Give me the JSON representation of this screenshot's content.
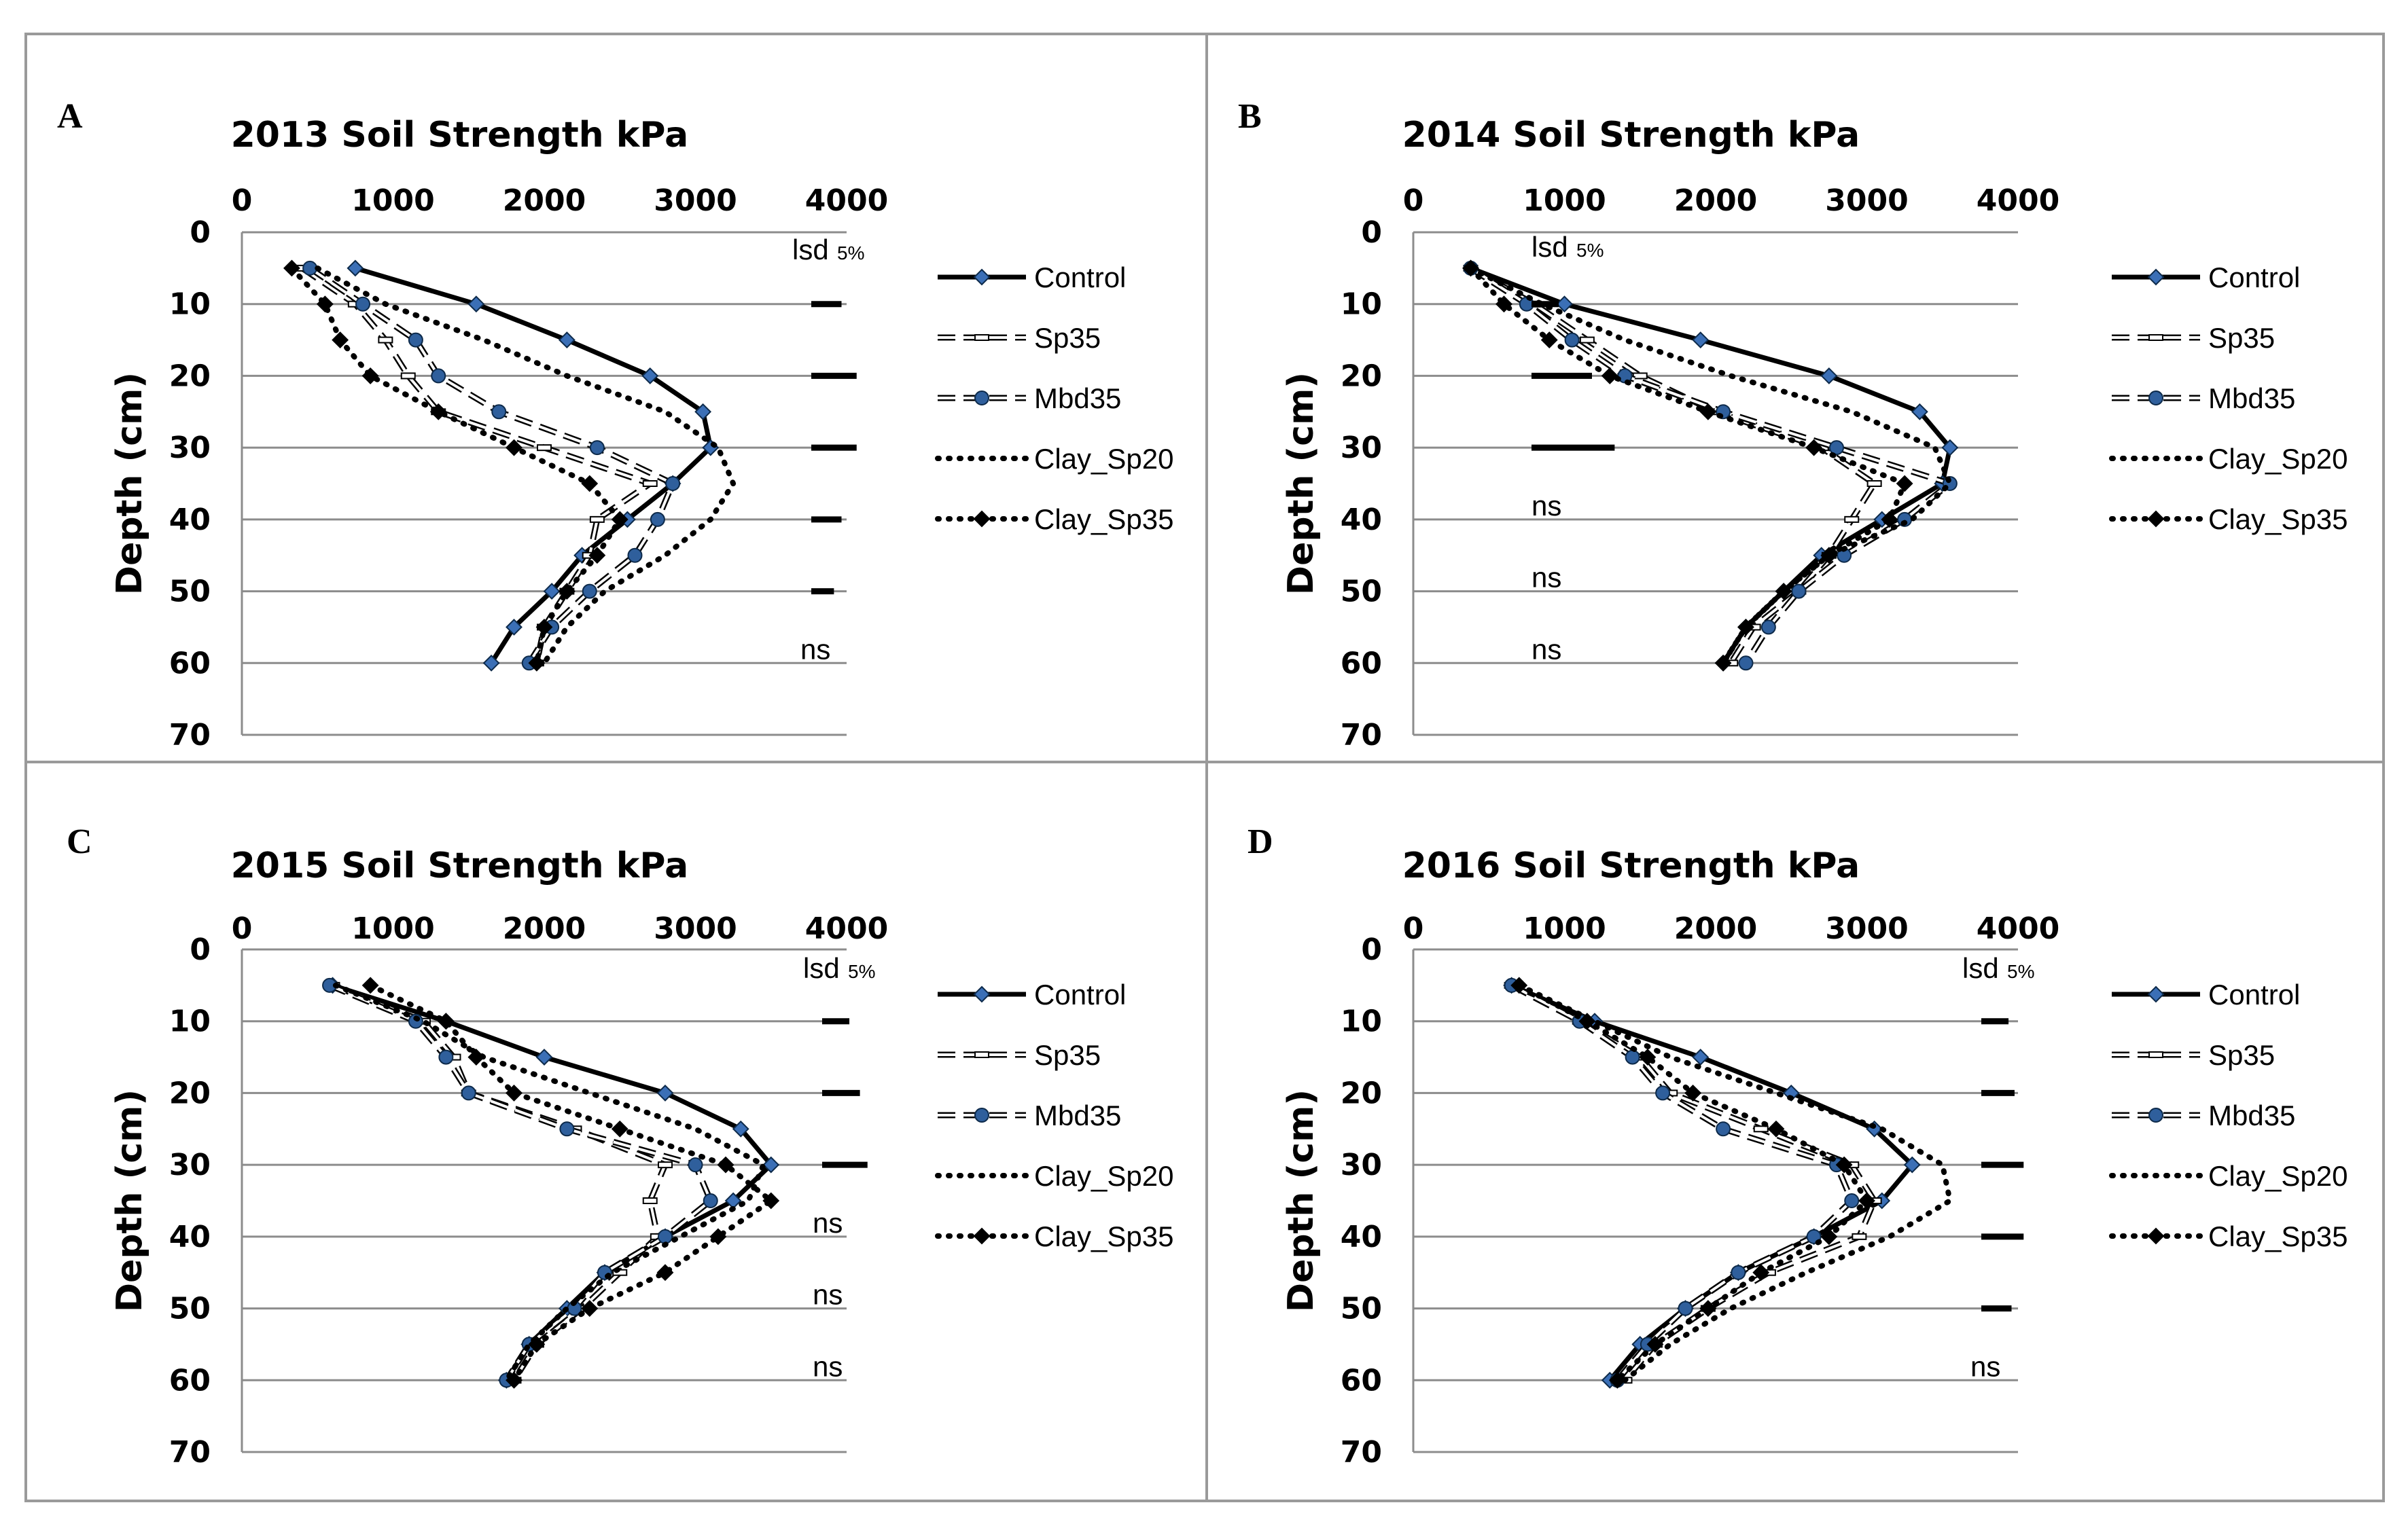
{
  "figure": {
    "legend_labels": [
      "Control",
      "Sp35",
      "Mbd35",
      "Clay_Sp20",
      "Clay_Sp35"
    ],
    "lsd_label": "lsd",
    "lsd_sub": "5%",
    "ns_label": "ns"
  },
  "chart_data": [
    {
      "id": "A",
      "type": "line",
      "panel_label": "A",
      "title": "2013 Soil Strength kPa",
      "xlabel": "",
      "ylabel": "Depth (cm)",
      "xlim": [
        0,
        4000
      ],
      "ylim": [
        0,
        70
      ],
      "x_ticks": [
        0,
        1000,
        2000,
        3000,
        4000
      ],
      "y_ticks": [
        0,
        10,
        20,
        30,
        40,
        50,
        60,
        70
      ],
      "depths": [
        5,
        10,
        15,
        20,
        25,
        30,
        35,
        40,
        45,
        50,
        55,
        60
      ],
      "series": [
        {
          "name": "Control",
          "values": [
            750,
            1550,
            2150,
            2700,
            3050,
            3100,
            2850,
            2550,
            2250,
            2050,
            1800,
            1650
          ]
        },
        {
          "name": "Sp35",
          "values": [
            400,
            750,
            950,
            1100,
            1300,
            2000,
            2700,
            2350,
            2300,
            2150,
            2000,
            1950
          ]
        },
        {
          "name": "Mbd35",
          "values": [
            450,
            800,
            1150,
            1300,
            1700,
            2350,
            2850,
            2750,
            2600,
            2300,
            2050,
            1900
          ]
        },
        {
          "name": "Clay_Sp20",
          "values": [
            500,
            950,
            1600,
            2150,
            2800,
            3150,
            3250,
            3100,
            2800,
            2400,
            2150,
            2000
          ]
        },
        {
          "name": "Clay_Sp35",
          "values": [
            330,
            550,
            650,
            850,
            1300,
            1800,
            2300,
            2500,
            2350,
            2150,
            2000,
            1950
          ]
        }
      ],
      "lsd_marks": [
        {
          "depth": 10,
          "value": 200
        },
        {
          "depth": 20,
          "value": 300
        },
        {
          "depth": 30,
          "value": 300
        },
        {
          "depth": 40,
          "value": 200
        },
        {
          "depth": 50,
          "value": 150
        }
      ],
      "ns_depths": [
        60
      ]
    },
    {
      "id": "B",
      "type": "line",
      "panel_label": "B",
      "title": "2014 Soil Strength kPa",
      "xlabel": "",
      "ylabel": "Depth (cm)",
      "xlim": [
        0,
        4000
      ],
      "ylim": [
        0,
        70
      ],
      "x_ticks": [
        0,
        1000,
        2000,
        3000,
        4000
      ],
      "y_ticks": [
        0,
        10,
        20,
        30,
        40,
        50,
        60,
        70
      ],
      "depths": [
        5,
        10,
        15,
        20,
        25,
        30,
        35,
        40,
        45,
        50,
        55,
        60
      ],
      "series": [
        {
          "name": "Control",
          "values": [
            380,
            1000,
            1900,
            2750,
            3350,
            3550,
            3500,
            3100,
            2700,
            2450,
            2200,
            2050
          ]
        },
        {
          "name": "Sp35",
          "values": [
            380,
            800,
            1150,
            1500,
            2000,
            2700,
            3050,
            2900,
            2750,
            2550,
            2250,
            2100
          ]
        },
        {
          "name": "Mbd35",
          "values": [
            380,
            750,
            1050,
            1400,
            2050,
            2800,
            3550,
            3250,
            2850,
            2550,
            2350,
            2200
          ]
        },
        {
          "name": "Clay_Sp20",
          "values": [
            380,
            850,
            1400,
            2100,
            2900,
            3450,
            3550,
            3300,
            2750,
            2450,
            2200,
            2050
          ]
        },
        {
          "name": "Clay_Sp35",
          "values": [
            380,
            600,
            900,
            1300,
            1950,
            2650,
            3250,
            3150,
            2750,
            2450,
            2200,
            2050
          ]
        }
      ],
      "lsd_marks": [
        {
          "depth": 10,
          "value": 180
        },
        {
          "depth": 20,
          "value": 400
        },
        {
          "depth": 30,
          "value": 550
        }
      ],
      "ns_depths": [
        40,
        50,
        60
      ]
    },
    {
      "id": "C",
      "type": "line",
      "panel_label": "C",
      "title": "2015 Soil Strength kPa",
      "xlabel": "",
      "ylabel": "Depth (cm)",
      "xlim": [
        0,
        4000
      ],
      "ylim": [
        0,
        70
      ],
      "x_ticks": [
        0,
        1000,
        2000,
        3000,
        4000
      ],
      "y_ticks": [
        0,
        10,
        20,
        30,
        40,
        50,
        60,
        70
      ],
      "depths": [
        5,
        10,
        15,
        20,
        25,
        30,
        35,
        40,
        45,
        50,
        55,
        60
      ],
      "series": [
        {
          "name": "Control",
          "values": [
            600,
            1350,
            2000,
            2800,
            3300,
            3500,
            3250,
            2800,
            2400,
            2150,
            1900,
            1750
          ]
        },
        {
          "name": "Sp35",
          "values": [
            600,
            1200,
            1400,
            1500,
            2200,
            2800,
            2700,
            2750,
            2500,
            2250,
            1950,
            1800
          ]
        },
        {
          "name": "Mbd35",
          "values": [
            580,
            1150,
            1350,
            1500,
            2150,
            3000,
            3100,
            2800,
            2400,
            2200,
            1900,
            1750
          ]
        },
        {
          "name": "Clay_Sp20",
          "values": [
            620,
            1200,
            1600,
            2300,
            3000,
            3450,
            3350,
            2900,
            2450,
            2150,
            1900,
            1750
          ]
        },
        {
          "name": "Clay_Sp35",
          "values": [
            850,
            1350,
            1550,
            1800,
            2500,
            3200,
            3500,
            3150,
            2800,
            2300,
            1950,
            1800
          ]
        }
      ],
      "lsd_marks": [
        {
          "depth": 10,
          "value": 180
        },
        {
          "depth": 20,
          "value": 250
        },
        {
          "depth": 30,
          "value": 300
        }
      ],
      "ns_depths": [
        40,
        50,
        60
      ]
    },
    {
      "id": "D",
      "type": "line",
      "panel_label": "D",
      "title": "2016 Soil Strength kPa",
      "xlabel": "",
      "ylabel": "Depth (cm)",
      "xlim": [
        0,
        4000
      ],
      "ylim": [
        0,
        70
      ],
      "x_ticks": [
        0,
        1000,
        2000,
        3000,
        4000
      ],
      "y_ticks": [
        0,
        10,
        20,
        30,
        40,
        50,
        60,
        70
      ],
      "depths": [
        5,
        10,
        15,
        20,
        25,
        30,
        35,
        40,
        45,
        50,
        55,
        60
      ],
      "series": [
        {
          "name": "Control",
          "values": [
            650,
            1200,
            1900,
            2500,
            3050,
            3300,
            3100,
            2650,
            2150,
            1800,
            1500,
            1300
          ]
        },
        {
          "name": "Sp35",
          "values": [
            650,
            1100,
            1500,
            1700,
            2300,
            2900,
            3050,
            2950,
            2350,
            1950,
            1600,
            1400
          ]
        },
        {
          "name": "Mbd35",
          "values": [
            650,
            1100,
            1450,
            1650,
            2050,
            2800,
            2900,
            2650,
            2150,
            1800,
            1550,
            1350
          ]
        },
        {
          "name": "Clay_Sp20",
          "values": [
            700,
            1200,
            1700,
            2400,
            3100,
            3500,
            3550,
            3150,
            2600,
            2100,
            1700,
            1400
          ]
        },
        {
          "name": "Clay_Sp35",
          "values": [
            700,
            1150,
            1550,
            1850,
            2400,
            2850,
            3000,
            2750,
            2300,
            1950,
            1600,
            1350
          ]
        }
      ],
      "lsd_marks": [
        {
          "depth": 10,
          "value": 180
        },
        {
          "depth": 20,
          "value": 220
        },
        {
          "depth": 30,
          "value": 280
        },
        {
          "depth": 40,
          "value": 280
        },
        {
          "depth": 50,
          "value": 200
        }
      ],
      "ns_depths": [
        60
      ]
    }
  ]
}
